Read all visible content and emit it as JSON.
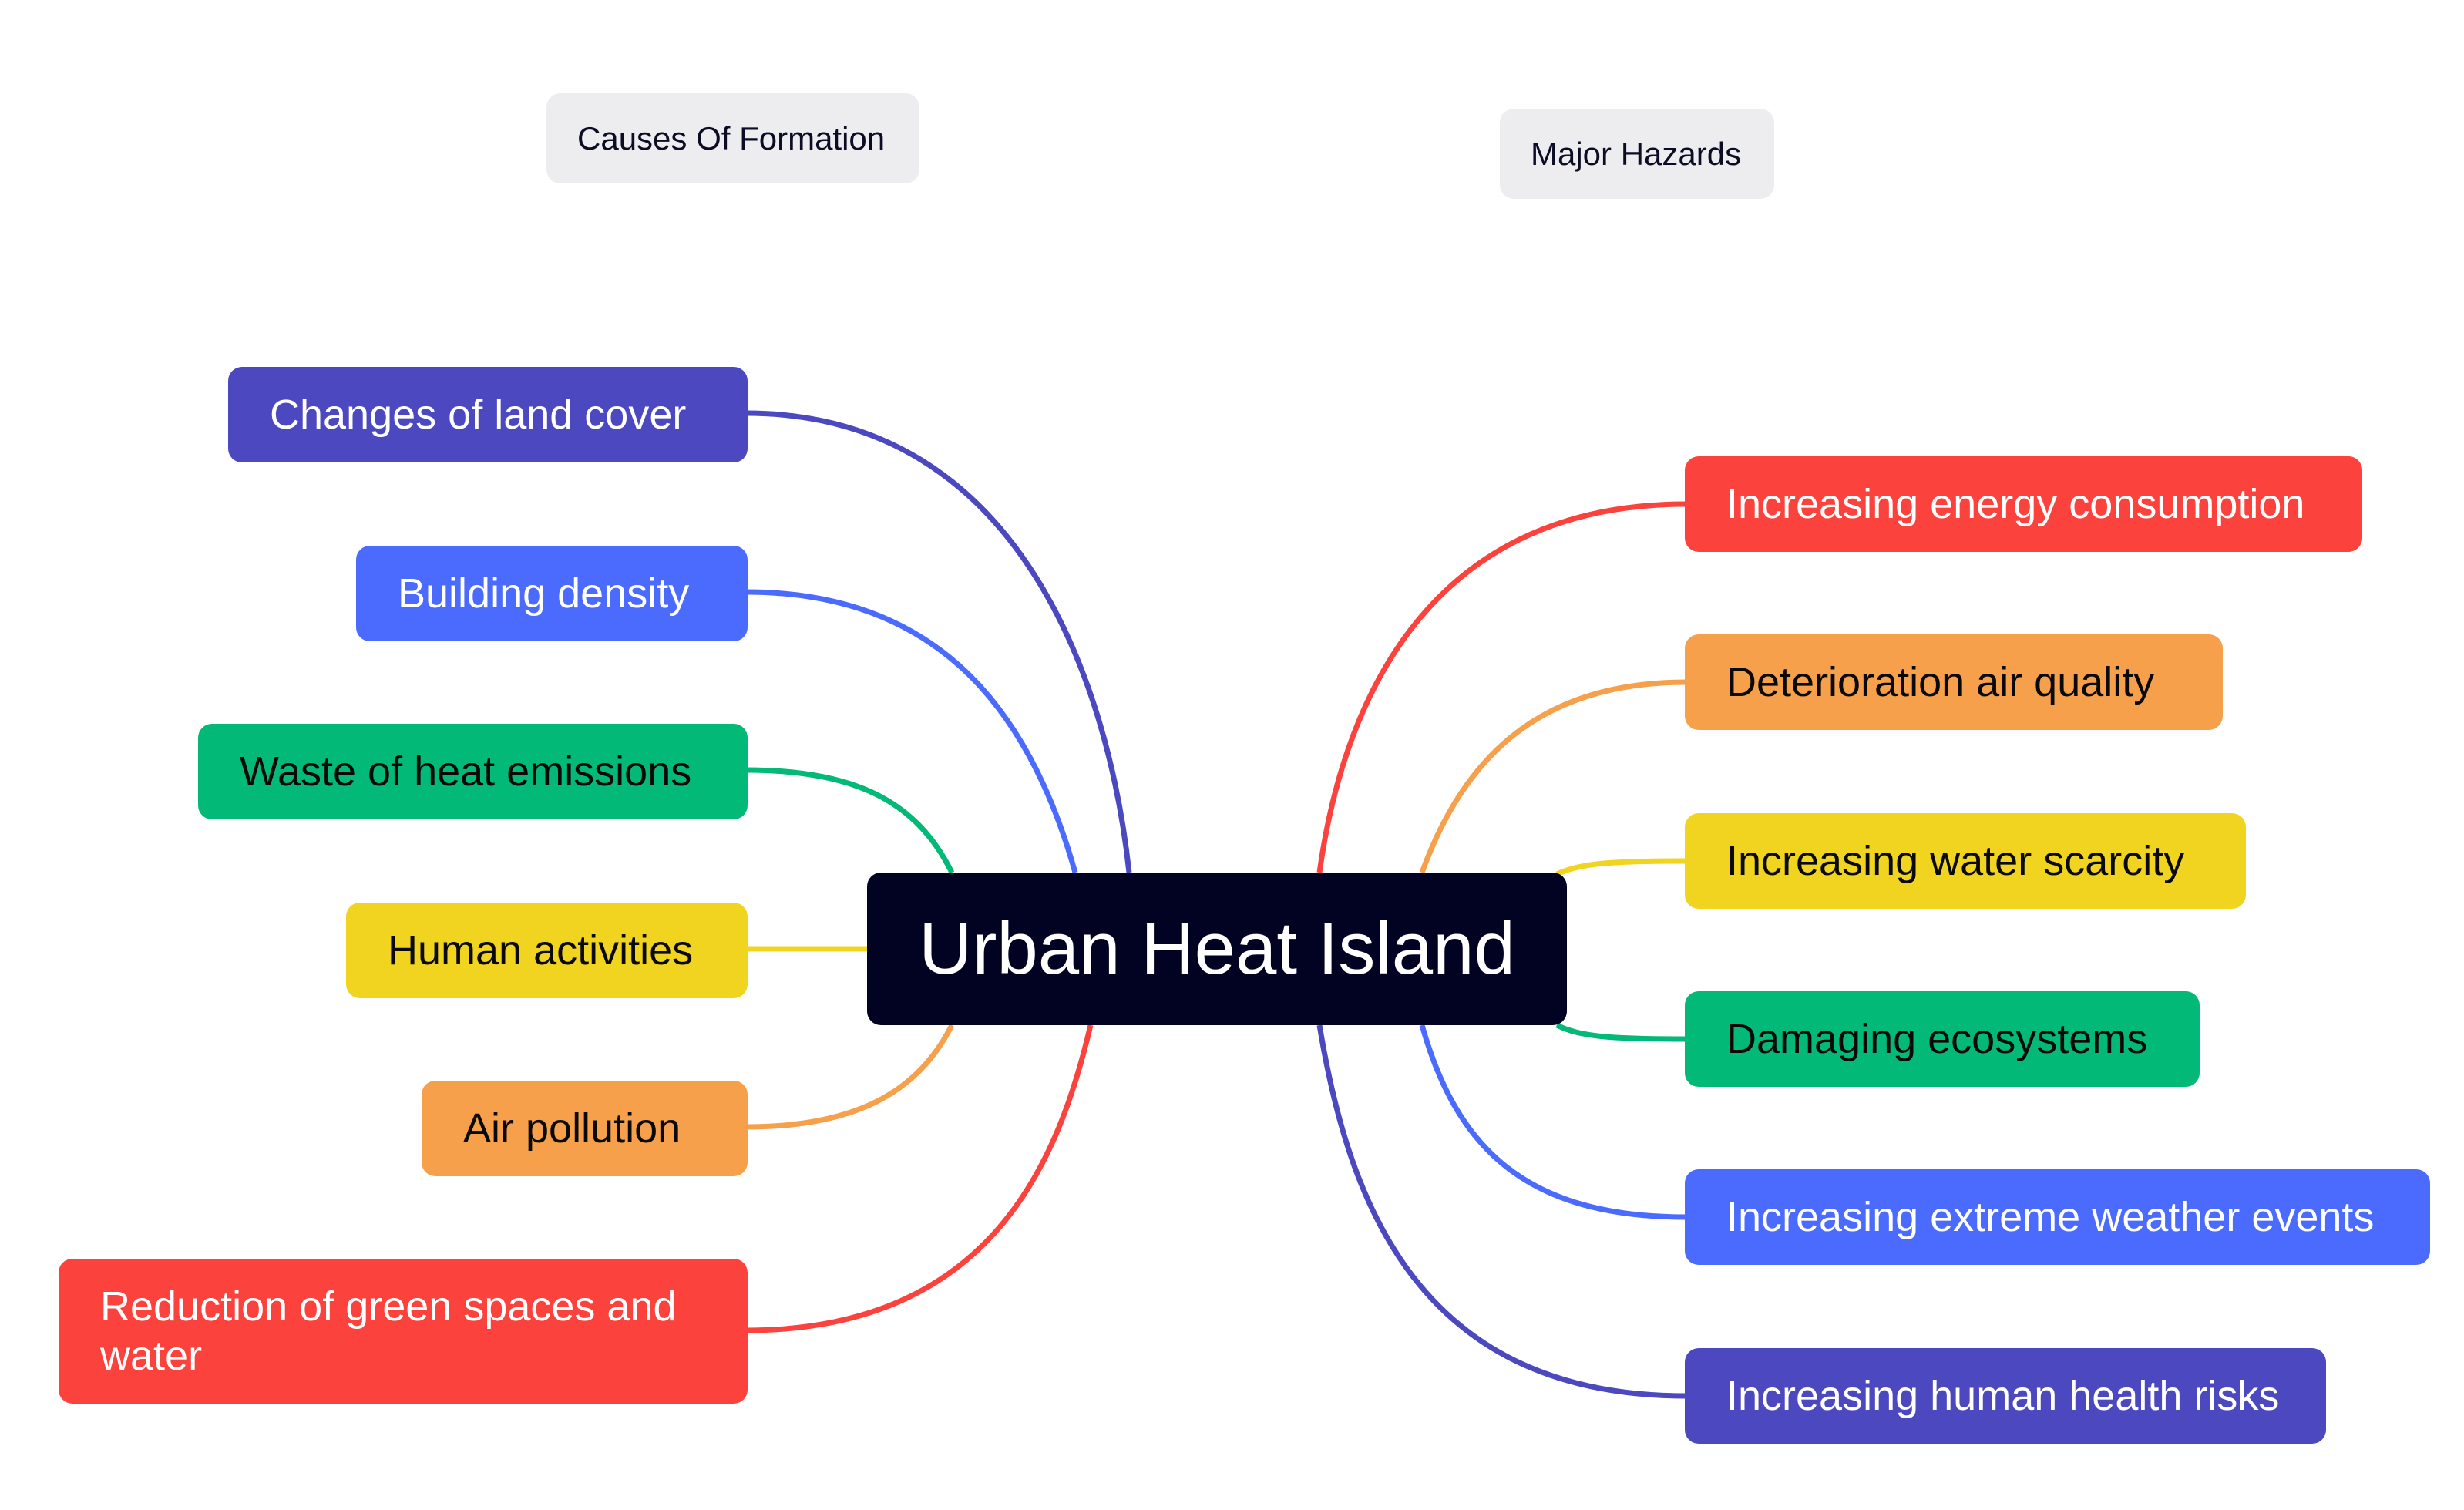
{
  "root": {
    "label": "Urban Heat Island",
    "color": "#020223"
  },
  "groups": {
    "causes": {
      "label": "Causes Of Formation"
    },
    "hazards": {
      "label": "Major Hazards"
    }
  },
  "causes": [
    {
      "label": "Changes of land cover",
      "color": "#4c48c0",
      "text_color": "#ffffff"
    },
    {
      "label": "Building density",
      "color": "#4a6bfd",
      "text_color": "#ffffff"
    },
    {
      "label": "Waste of heat emissions",
      "color": "#03b978",
      "text_color": "#0a0a0a"
    },
    {
      "label": "Human activities",
      "color": "#f0d420",
      "text_color": "#0a0a0a"
    },
    {
      "label": "Air pollution",
      "color": "#f6a04b",
      "text_color": "#0a0a0a"
    },
    {
      "label": "Reduction of green spaces and water",
      "color": "#fc423c",
      "text_color": "#ffffff"
    }
  ],
  "hazards": [
    {
      "label": "Increasing energy consumption",
      "color": "#fc423c",
      "text_color": "#ffffff"
    },
    {
      "label": "Deterioration air quality",
      "color": "#f6a04b",
      "text_color": "#0a0a0a"
    },
    {
      "label": "Increasing water scarcity",
      "color": "#f0d420",
      "text_color": "#0a0a0a"
    },
    {
      "label": "Damaging ecosystems",
      "color": "#03b978",
      "text_color": "#0a0a0a"
    },
    {
      "label": "Increasing extreme weather events",
      "color": "#4a6bfd",
      "text_color": "#ffffff"
    },
    {
      "label": "Increasing human health risks",
      "color": "#4c48c0",
      "text_color": "#ffffff"
    }
  ]
}
